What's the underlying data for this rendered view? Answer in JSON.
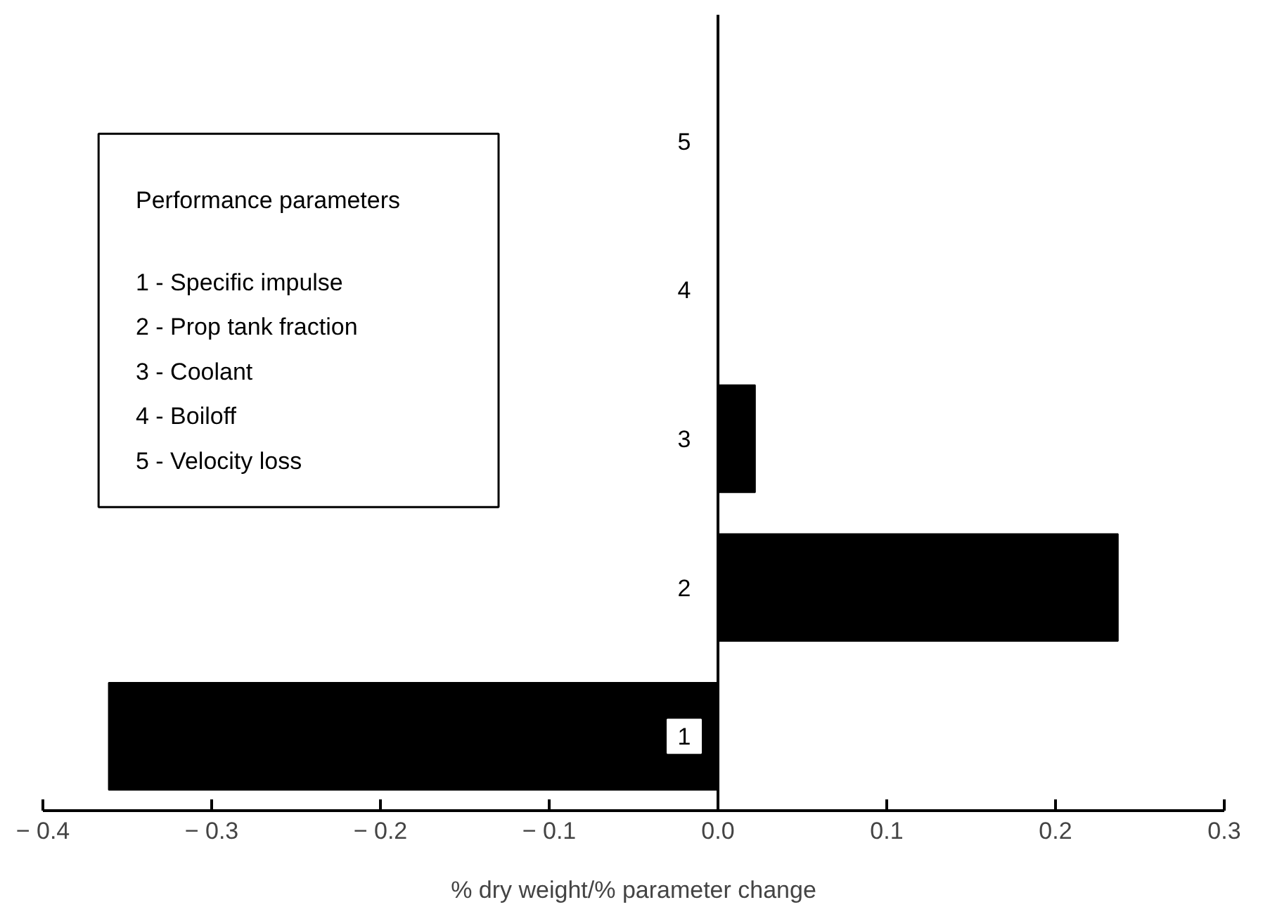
{
  "chart_data": {
    "type": "bar",
    "orientation": "horizontal",
    "categories": [
      "5",
      "4",
      "3",
      "2",
      "1"
    ],
    "values": [
      0,
      0,
      0.022,
      0.237,
      -0.361
    ],
    "color": "#000000",
    "xlabel": "% dry weight/% parameter change",
    "xlim": [
      -0.4,
      0.3
    ],
    "xticks": [
      {
        "value": -0.4,
        "label": "− 0.4"
      },
      {
        "value": -0.3,
        "label": "− 0.3"
      },
      {
        "value": -0.2,
        "label": "− 0.2"
      },
      {
        "value": -0.1,
        "label": "− 0.1"
      },
      {
        "value": 0,
        "label": "0.0"
      },
      0.1,
      0.2,
      0.3
    ],
    "annotations": [
      "Performance parameters",
      "1 - Specific impulse",
      "2 - Prop tank fraction",
      "3 - Coolant",
      "4 - Boiloff",
      "5 - Velocity loss"
    ],
    "grid": false
  }
}
